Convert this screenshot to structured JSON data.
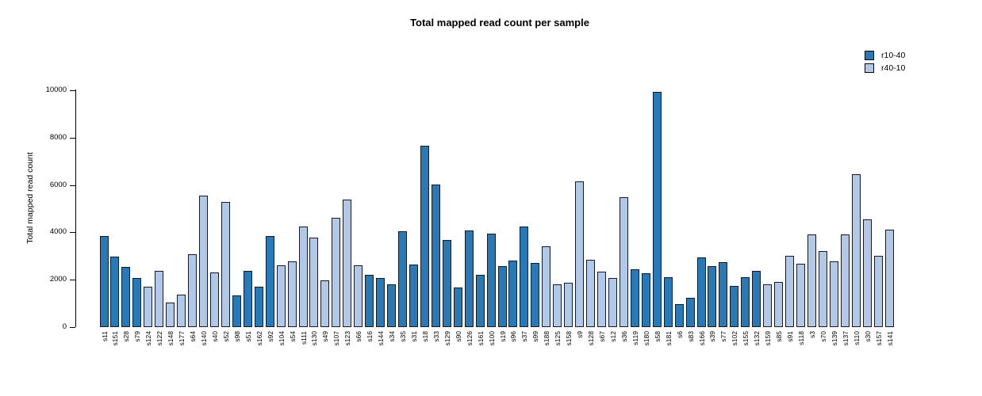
{
  "figure": {
    "background": "#ffffff"
  },
  "chart_data": {
    "type": "bar",
    "title": "Total mapped read count per sample",
    "xlabel": "",
    "ylabel": "Total mapped read count",
    "ylim": [
      0,
      10000
    ],
    "yticks": [
      0,
      2000,
      4000,
      6000,
      8000,
      10000
    ],
    "grid": false,
    "legend_position": "top-right",
    "bar_border_color": "#1a1a1a",
    "axis_color": "#000000",
    "legend": [
      {
        "name": "r10-40",
        "color": "#2779b8"
      },
      {
        "name": "r40-10",
        "color": "#b1c8e8"
      }
    ],
    "categories": [
      "s11",
      "s151",
      "s28",
      "s79",
      "s124",
      "s122",
      "s148",
      "s177",
      "s64",
      "s140",
      "s40",
      "s52",
      "s98",
      "s51",
      "s162",
      "s92",
      "s104",
      "s54",
      "s111",
      "s130",
      "s49",
      "s107",
      "s123",
      "s66",
      "s16",
      "s144",
      "s34",
      "s35",
      "s31",
      "s18",
      "s33",
      "s129",
      "s90",
      "s126",
      "s161",
      "s100",
      "s19",
      "s96",
      "s37",
      "s99",
      "s188",
      "s125",
      "s158",
      "s9",
      "s128",
      "s67",
      "s12",
      "s36",
      "s119",
      "s180",
      "s58",
      "s181",
      "s6",
      "s83",
      "s166",
      "s39",
      "s77",
      "s102",
      "s155",
      "s132",
      "s159",
      "s85",
      "s91",
      "s118",
      "s3",
      "s70",
      "s139",
      "s137",
      "s110",
      "s30",
      "s157",
      "s141"
    ],
    "values": [
      3860,
      2960,
      2550,
      2060,
      1700,
      2360,
      1050,
      1380,
      3070,
      5540,
      2310,
      5280,
      1340,
      2390,
      1720,
      3830,
      2620,
      2790,
      4260,
      3790,
      1980,
      4630,
      5380,
      2620,
      2220,
      2060,
      1790,
      4040,
      2640,
      7660,
      6020,
      3690,
      1680,
      4080,
      2210,
      3960,
      2590,
      2810,
      4250,
      2700,
      3420,
      1790,
      1870,
      6150,
      2830,
      2340,
      2080,
      5470,
      2430,
      2290,
      9940,
      2100,
      960,
      1240,
      2950,
      2570,
      2740,
      1730,
      2120,
      2370,
      1790,
      1910,
      3000,
      2690,
      3920,
      3220,
      2780,
      3900,
      6470,
      4560,
      3010,
      4130
    ],
    "bar_series": [
      "r10-40",
      "r10-40",
      "r10-40",
      "r10-40",
      "r40-10",
      "r40-10",
      "r40-10",
      "r40-10",
      "r40-10",
      "r40-10",
      "r40-10",
      "r40-10",
      "r10-40",
      "r10-40",
      "r10-40",
      "r10-40",
      "r40-10",
      "r40-10",
      "r40-10",
      "r40-10",
      "r40-10",
      "r40-10",
      "r40-10",
      "r40-10",
      "r10-40",
      "r10-40",
      "r10-40",
      "r10-40",
      "r10-40",
      "r10-40",
      "r10-40",
      "r10-40",
      "r10-40",
      "r10-40",
      "r10-40",
      "r10-40",
      "r10-40",
      "r10-40",
      "r10-40",
      "r10-40",
      "r40-10",
      "r40-10",
      "r40-10",
      "r40-10",
      "r40-10",
      "r40-10",
      "r40-10",
      "r40-10",
      "r10-40",
      "r10-40",
      "r10-40",
      "r10-40",
      "r10-40",
      "r10-40",
      "r10-40",
      "r10-40",
      "r10-40",
      "r10-40",
      "r10-40",
      "r10-40",
      "r40-10",
      "r40-10",
      "r40-10",
      "r40-10",
      "r40-10",
      "r40-10",
      "r40-10",
      "r40-10",
      "r40-10",
      "r40-10",
      "r40-10",
      "r40-10"
    ]
  }
}
